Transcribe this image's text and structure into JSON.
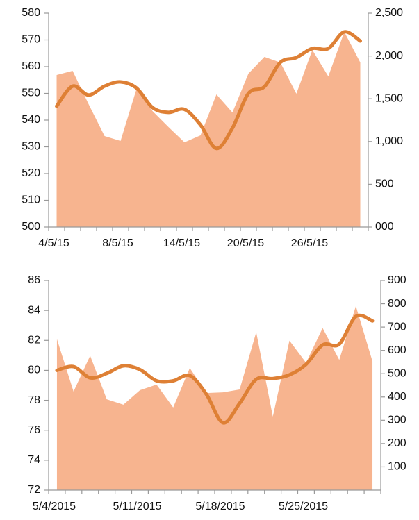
{
  "chart_data": [
    {
      "type": "line-area",
      "categories": [
        "4/5/15",
        null,
        null,
        null,
        "8/5/15",
        null,
        null,
        null,
        "14/5/15",
        null,
        null,
        null,
        "20/5/15",
        null,
        null,
        null,
        "26/5/15",
        null,
        null,
        null
      ],
      "series": [
        {
          "color": "#f7b48f",
          "axis": "y2",
          "kind": "area",
          "values": [
            1778,
            1826,
            1437,
            1063,
            1006,
            1615,
            1356,
            1169,
            990,
            1071,
            1550,
            1339,
            1794,
            1989,
            1924,
            1558,
            2070,
            1761,
            2281,
            1924
          ]
        },
        {
          "color": "#de8035",
          "axis": "y",
          "kind": "line",
          "values": [
            545.2,
            552.7,
            549.4,
            552.7,
            554.3,
            552,
            544.7,
            542.9,
            544,
            538.2,
            529.4,
            537,
            550,
            552.5,
            561.6,
            563.4,
            566.8,
            566.8,
            573,
            569.6
          ]
        }
      ],
      "ylim": [
        500,
        580
      ],
      "yticks": [
        500,
        510,
        520,
        530,
        540,
        550,
        560,
        570,
        580
      ],
      "y2lim": [
        0,
        2500
      ],
      "y2ticks": [
        {
          "value": 0,
          "label": "000"
        },
        500,
        {
          "value": 1000,
          "label": "1,000"
        },
        {
          "value": 1500,
          "label": "1,500"
        },
        {
          "value": 2000,
          "label": "2,000"
        },
        {
          "value": 2500,
          "label": "2,500"
        }
      ]
    },
    {
      "type": "line-area",
      "categories": [
        "5/4/2015",
        null,
        null,
        null,
        null,
        "5/11/2015",
        null,
        null,
        null,
        null,
        "5/18/2015",
        null,
        null,
        null,
        null,
        "5/25/2015",
        null,
        null,
        null,
        null
      ],
      "series": [
        {
          "color": "#f7b48f",
          "axis": "y2",
          "kind": "area",
          "values": [
            648,
            423,
            577,
            390,
            367,
            429,
            453,
            355,
            524,
            417,
            420,
            432,
            678,
            316,
            642,
            547,
            696,
            559,
            790,
            553
          ]
        },
        {
          "color": "#de8035",
          "axis": "y",
          "kind": "line",
          "values": [
            80.0,
            80.25,
            79.5,
            79.8,
            80.3,
            80.05,
            79.3,
            79.3,
            79.65,
            78.4,
            76.5,
            77.8,
            79.4,
            79.45,
            79.7,
            80.4,
            81.7,
            81.75,
            83.6,
            83.3
          ]
        }
      ],
      "ylim": [
        72,
        86
      ],
      "yticks": [
        72,
        74,
        76,
        78,
        80,
        82,
        84,
        86
      ],
      "y2lim": [
        0,
        900
      ],
      "y2ticks": [
        100,
        200,
        300,
        400,
        500,
        600,
        700,
        800,
        900
      ]
    }
  ]
}
